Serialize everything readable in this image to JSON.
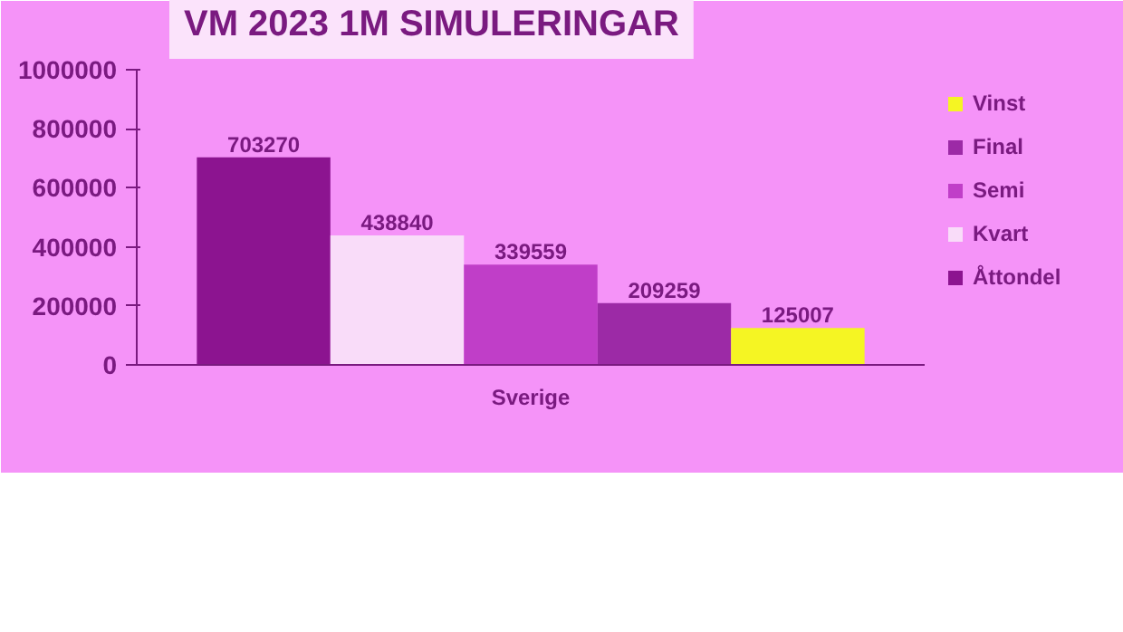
{
  "chart_data": {
    "type": "bar",
    "title": "VM 2023 1M SIMULERINGAR",
    "categories": [
      "Sverige"
    ],
    "series": [
      {
        "name": "Åttondel",
        "color": "#8c1490",
        "values": [
          703270
        ]
      },
      {
        "name": "Kvart",
        "color": "#f9dcf9",
        "values": [
          438840
        ]
      },
      {
        "name": "Semi",
        "color": "#c03ec8",
        "values": [
          339559
        ]
      },
      {
        "name": "Final",
        "color": "#9c2aa6",
        "values": [
          209259
        ]
      },
      {
        "name": "Vinst",
        "color": "#f5f523",
        "values": [
          125007
        ]
      }
    ],
    "ylim": [
      0,
      1000000
    ],
    "yticks": [
      0,
      200000,
      400000,
      600000,
      800000,
      1000000
    ],
    "data_labels": true,
    "legend": "right",
    "grid": false
  }
}
